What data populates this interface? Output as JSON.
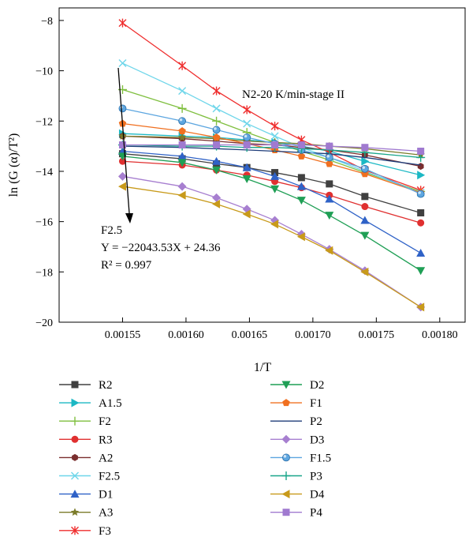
{
  "chart_data": {
    "type": "line",
    "annotation": "N2-20 K/min-stage II",
    "xlabel": "1/T",
    "ylabel": "ln (G (α)/T²)",
    "xlim": [
      0.0015,
      0.00182
    ],
    "ylim": [
      -20,
      -7.5
    ],
    "x_ticks": [
      0.00155,
      0.0016,
      0.00165,
      0.0017,
      0.00175,
      0.0018
    ],
    "x_tick_labels": [
      "0.00155",
      "0.00160",
      "0.00165",
      "0.00170",
      "0.00175",
      "0.00180"
    ],
    "y_ticks": [
      -20,
      -18,
      -16,
      -14,
      -12,
      -10,
      -8
    ],
    "y_tick_labels": [
      "−20",
      "−18",
      "−16",
      "−14",
      "−12",
      "−10",
      "−8"
    ],
    "x": [
      0.00155,
      0.001597,
      0.001624,
      0.001648,
      0.00167,
      0.001691,
      0.001713,
      0.001741,
      0.001785
    ],
    "fit_text": {
      "line1": "F2.5",
      "line2": "Y = −22043.53X + 24.36",
      "line3": "R² = 0.997"
    },
    "series": [
      {
        "name": "R2",
        "color": "#404040",
        "marker": "square",
        "values": [
          -13.3,
          -13.5,
          -13.7,
          -13.85,
          -14.05,
          -14.25,
          -14.5,
          -15.0,
          -15.65
        ]
      },
      {
        "name": "A1.5",
        "color": "#1cb8c4",
        "marker": "triangle-right",
        "values": [
          -12.5,
          -12.6,
          -12.65,
          -12.75,
          -12.85,
          -13.0,
          -13.2,
          -13.6,
          -14.15
        ]
      },
      {
        "name": "F2",
        "color": "#7fbf3f",
        "marker": "plus",
        "values": [
          -10.75,
          -11.5,
          -12.0,
          -12.45,
          -12.85,
          -13.2,
          -13.55,
          -14.05,
          -14.8
        ]
      },
      {
        "name": "R3",
        "color": "#e03030",
        "marker": "circle",
        "values": [
          -13.6,
          -13.75,
          -13.95,
          -14.15,
          -14.4,
          -14.65,
          -14.95,
          -15.4,
          -16.05
        ]
      },
      {
        "name": "A2",
        "color": "#7a2e2e",
        "marker": "hexagon",
        "values": [
          -12.6,
          -12.7,
          -12.8,
          -12.9,
          -12.95,
          -13.05,
          -13.15,
          -13.35,
          -13.8
        ]
      },
      {
        "name": "F2.5",
        "color": "#6fd6ea",
        "marker": "x",
        "values": [
          -9.7,
          -10.8,
          -11.5,
          -12.1,
          -12.6,
          -13.05,
          -13.45,
          -14.0,
          -14.85
        ]
      },
      {
        "name": "D1",
        "color": "#2f62c7",
        "marker": "triangle-up",
        "values": [
          -13.2,
          -13.4,
          -13.6,
          -13.85,
          -14.2,
          -14.6,
          -15.1,
          -15.95,
          -17.25
        ]
      },
      {
        "name": "A3",
        "color": "#7b7b2a",
        "marker": "star",
        "values": [
          -12.6,
          -12.65,
          -12.7,
          -12.8,
          -12.85,
          -12.9,
          -13.0,
          -13.1,
          -13.35
        ]
      },
      {
        "name": "F3",
        "color": "#ef2e2e",
        "marker": "asterisk",
        "values": [
          -8.1,
          -9.8,
          -10.8,
          -11.55,
          -12.2,
          -12.75,
          -13.25,
          -13.95,
          -14.75
        ]
      },
      {
        "name": "D2",
        "color": "#1f9f55",
        "marker": "triangle-down",
        "values": [
          -13.4,
          -13.65,
          -13.95,
          -14.3,
          -14.7,
          -15.15,
          -15.75,
          -16.55,
          -17.95
        ]
      },
      {
        "name": "F1",
        "color": "#f07020",
        "marker": "pentagon",
        "values": [
          -12.1,
          -12.4,
          -12.65,
          -12.9,
          -13.15,
          -13.4,
          -13.7,
          -14.1,
          -14.85
        ]
      },
      {
        "name": "P2",
        "color": "#1f3d7a",
        "marker": "none",
        "values": [
          -13.0,
          -13.05,
          -13.1,
          -13.15,
          -13.2,
          -13.25,
          -13.3,
          -13.45,
          -13.75
        ]
      },
      {
        "name": "D3",
        "color": "#a77fd0",
        "marker": "diamond",
        "values": [
          -14.2,
          -14.6,
          -15.05,
          -15.5,
          -15.95,
          -16.5,
          -17.1,
          -17.95,
          -19.4
        ]
      },
      {
        "name": "F1.5",
        "color": "#5da6e0",
        "marker": "sphere",
        "values": [
          -11.5,
          -12.0,
          -12.35,
          -12.65,
          -12.9,
          -13.15,
          -13.45,
          -13.9,
          -14.9
        ]
      },
      {
        "name": "P3",
        "color": "#1aa68a",
        "marker": "plus",
        "values": [
          -12.95,
          -13.0,
          -13.0,
          -13.05,
          -13.05,
          -13.1,
          -13.15,
          -13.25,
          -13.45
        ]
      },
      {
        "name": "D4",
        "color": "#c89a1a",
        "marker": "triangle-left",
        "values": [
          -14.6,
          -14.95,
          -15.3,
          -15.7,
          -16.1,
          -16.6,
          -17.15,
          -18.0,
          -19.4
        ]
      },
      {
        "name": "P4",
        "color": "#a07ad0",
        "marker": "square",
        "values": [
          -12.95,
          -12.95,
          -12.95,
          -12.95,
          -12.95,
          -12.95,
          -13.0,
          -13.05,
          -13.2
        ]
      }
    ]
  }
}
